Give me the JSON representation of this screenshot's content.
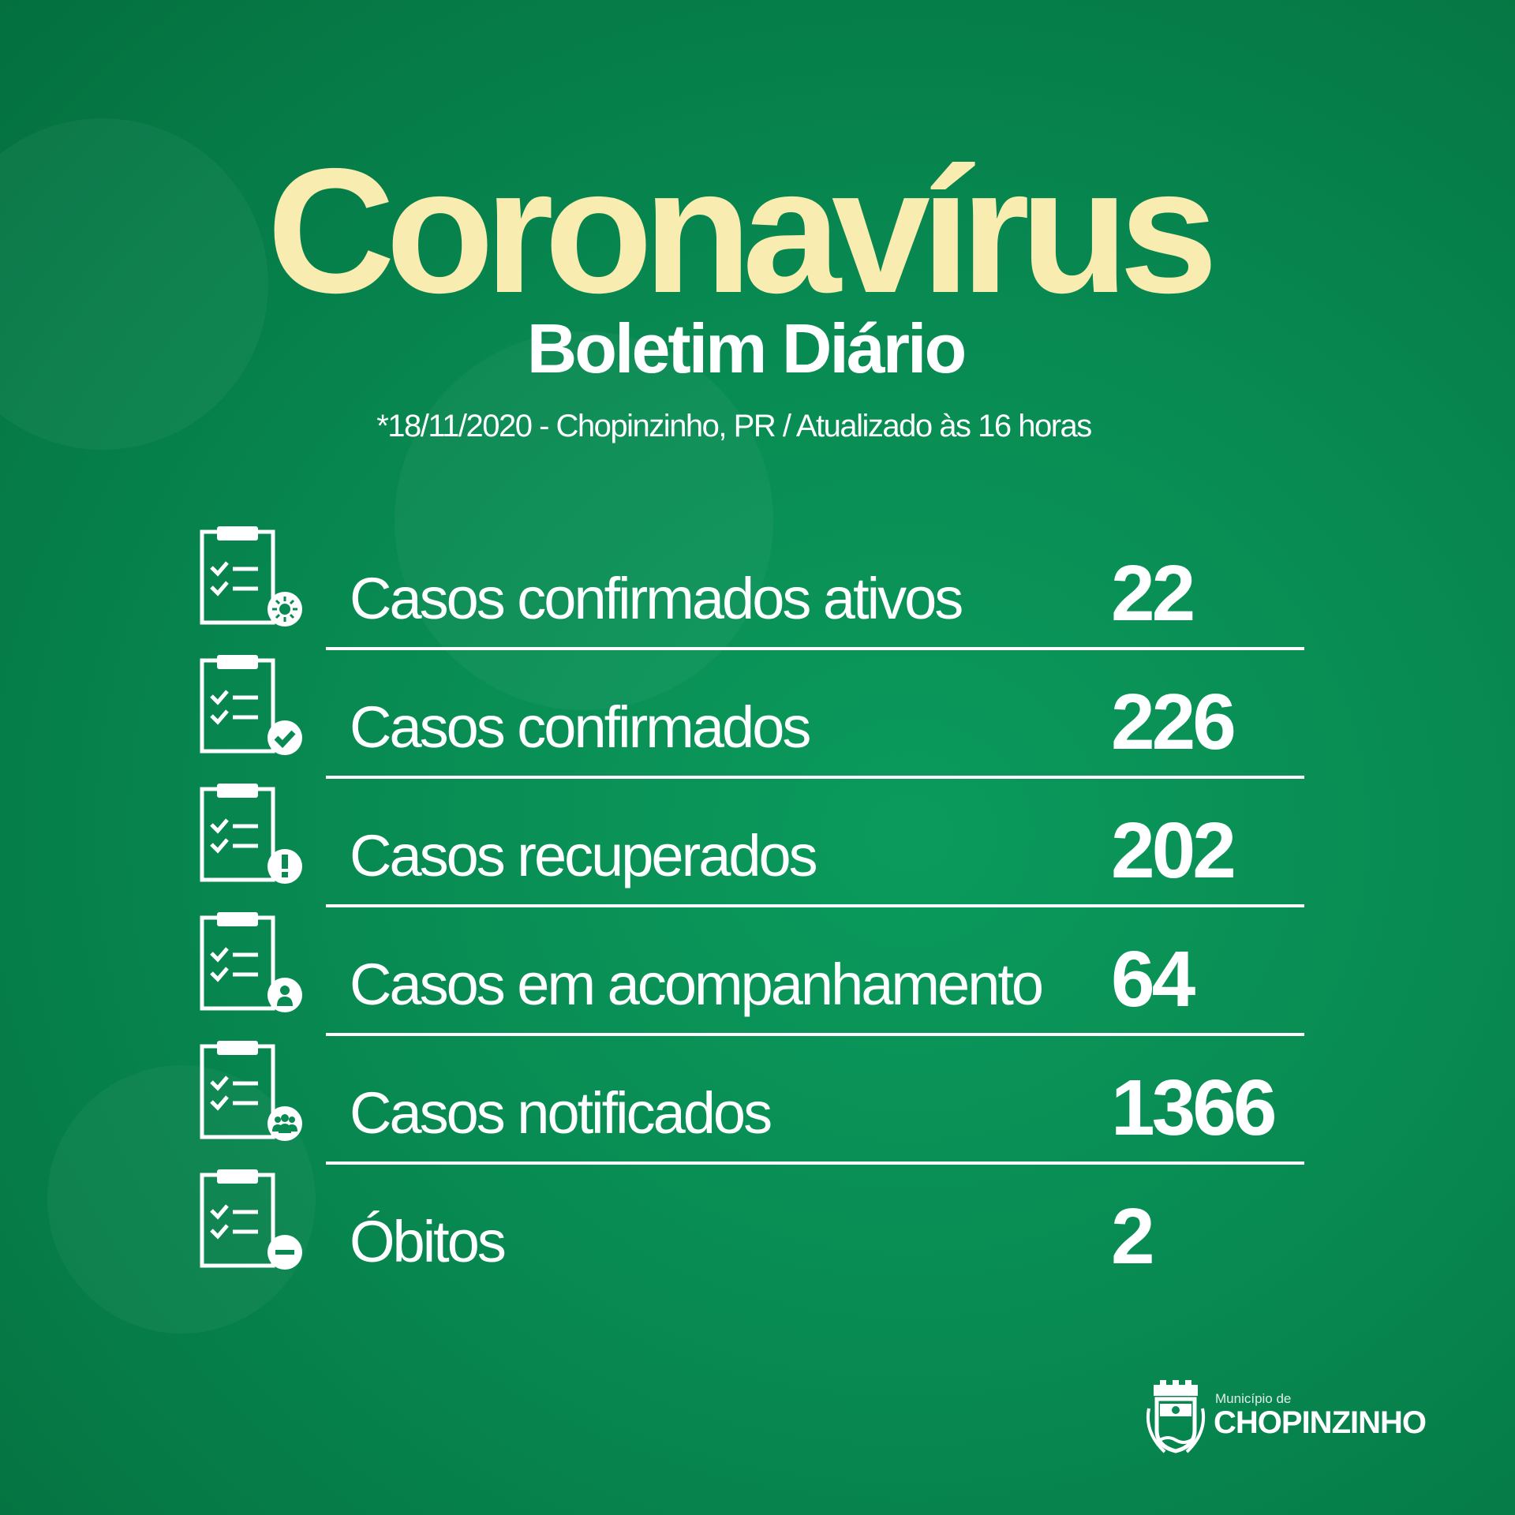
{
  "header": {
    "title": "Coronavírus",
    "subtitle": "Boletim Diário",
    "dateline": "*18/11/2020 - Chopinzinho, PR  / Atualizado às 16 horas"
  },
  "colors": {
    "background": "#088a52",
    "title": "#f9ecb0",
    "text": "#ffffff"
  },
  "stats": [
    {
      "label": "Casos confirmados ativos",
      "value": "22",
      "icon": "clipboard-virus-icon"
    },
    {
      "label": "Casos confirmados",
      "value": "226",
      "icon": "clipboard-check-icon"
    },
    {
      "label": "Casos recuperados",
      "value": "202",
      "icon": "clipboard-exclamation-icon"
    },
    {
      "label": "Casos em acompanhamento",
      "value": "64",
      "icon": "clipboard-person-icon"
    },
    {
      "label": "Casos notificados",
      "value": "1366",
      "icon": "clipboard-group-icon"
    },
    {
      "label": "Óbitos",
      "value": "2",
      "icon": "clipboard-minus-icon"
    }
  ],
  "logo": {
    "small": "Município de",
    "name": "CHOPINZINHO"
  }
}
